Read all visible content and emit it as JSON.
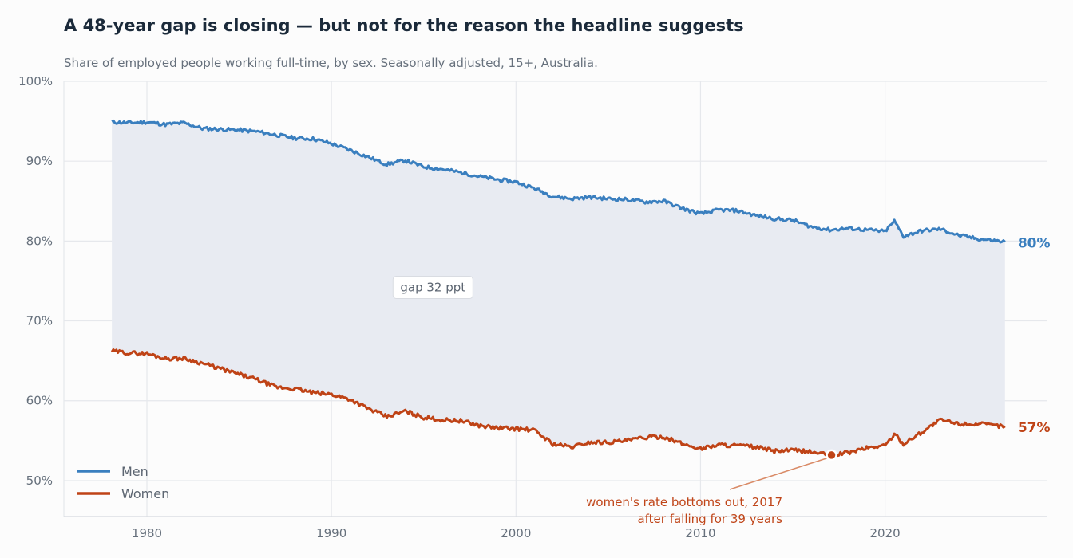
{
  "colors": {
    "men": "#3a7fbf",
    "women": "#bf4316",
    "gap_fill": "#e8ebf2",
    "grid": "#e6e8ec",
    "axis_text": "#66707c",
    "title": "#1b2a3a"
  },
  "chart_data": {
    "type": "line",
    "title": "A 48-year gap is closing — but not for the reason the headline suggests",
    "subtitle": "Share of employed people working full-time, by sex. Seasonally adjusted, 15+, Australia.",
    "xlabel": "",
    "ylabel": "",
    "xlim": [
      1975.5,
      2028.8
    ],
    "ylim": [
      45.5,
      100
    ],
    "x_ticks": [
      1980,
      1990,
      2000,
      2010,
      2020
    ],
    "y_ticks": [
      50,
      60,
      70,
      80,
      90,
      100
    ],
    "y_tick_labels": [
      "50%",
      "60%",
      "70%",
      "80%",
      "90%",
      "100%"
    ],
    "grid": true,
    "legend": {
      "position": "bottom-left",
      "entries": [
        "Men",
        "Women"
      ]
    },
    "series": [
      {
        "name": "Men",
        "x": [
          1978.1,
          1979,
          1980,
          1981,
          1982,
          1983,
          1984,
          1985,
          1986,
          1987,
          1988,
          1989,
          1990,
          1991,
          1992,
          1993,
          1994,
          1995,
          1996,
          1997,
          1998,
          1999,
          2000,
          2001,
          2002,
          2003,
          2004,
          2005,
          2006,
          2007,
          2008,
          2009,
          2010,
          2011,
          2012,
          2013,
          2014,
          2015,
          2016,
          2017,
          2018,
          2019,
          2020,
          2020.5,
          2021,
          2022,
          2023,
          2024,
          2025,
          2026.5
        ],
        "y": [
          94.9,
          94.8,
          94.9,
          94.6,
          94.8,
          94.1,
          94.0,
          93.9,
          93.7,
          93.3,
          92.9,
          92.8,
          92.2,
          91.4,
          90.5,
          89.6,
          90.1,
          89.3,
          89.0,
          88.6,
          88.1,
          87.7,
          87.4,
          86.6,
          85.6,
          85.3,
          85.5,
          85.3,
          85.2,
          84.9,
          85.0,
          84.1,
          83.4,
          83.9,
          83.8,
          83.2,
          82.8,
          82.6,
          81.8,
          81.4,
          81.6,
          81.4,
          81.2,
          82.5,
          80.6,
          81.3,
          81.5,
          80.7,
          80.3,
          79.9
        ]
      },
      {
        "name": "Women",
        "x": [
          1978.1,
          1979,
          1980,
          1981,
          1982,
          1983,
          1984,
          1985,
          1986,
          1987,
          1988,
          1989,
          1990,
          1991,
          1992,
          1993,
          1994,
          1995,
          1996,
          1997,
          1998,
          1999,
          2000,
          2001,
          2002,
          2003,
          2004,
          2005,
          2006,
          2007,
          2008,
          2009,
          2010,
          2011,
          2012,
          2013,
          2014,
          2015,
          2016,
          2017,
          2018,
          2019,
          2020,
          2020.5,
          2021,
          2022,
          2023,
          2024,
          2025,
          2026.5
        ],
        "y": [
          66.2,
          66.0,
          65.9,
          65.3,
          65.3,
          64.7,
          64.0,
          63.3,
          62.6,
          61.7,
          61.5,
          61.0,
          60.8,
          60.2,
          59.0,
          58.0,
          58.7,
          57.9,
          57.6,
          57.5,
          56.9,
          56.6,
          56.5,
          56.3,
          54.6,
          54.2,
          54.8,
          54.8,
          55.0,
          55.4,
          55.5,
          54.6,
          54.0,
          54.5,
          54.4,
          54.2,
          53.7,
          53.8,
          53.6,
          53.2,
          53.5,
          54.1,
          54.4,
          55.8,
          54.6,
          56.1,
          57.6,
          57.1,
          57.1,
          56.8
        ]
      }
    ],
    "end_labels": {
      "men": "80%",
      "women": "57%"
    },
    "gap_label": {
      "text": "gap 32 ppt",
      "x": 1995.5,
      "y": 74.2
    },
    "annotation": {
      "point_x": 2017.1,
      "point_y": 53.2,
      "line1": "women's rate bottoms out, 2017",
      "line2": "after falling for 39 years"
    }
  }
}
